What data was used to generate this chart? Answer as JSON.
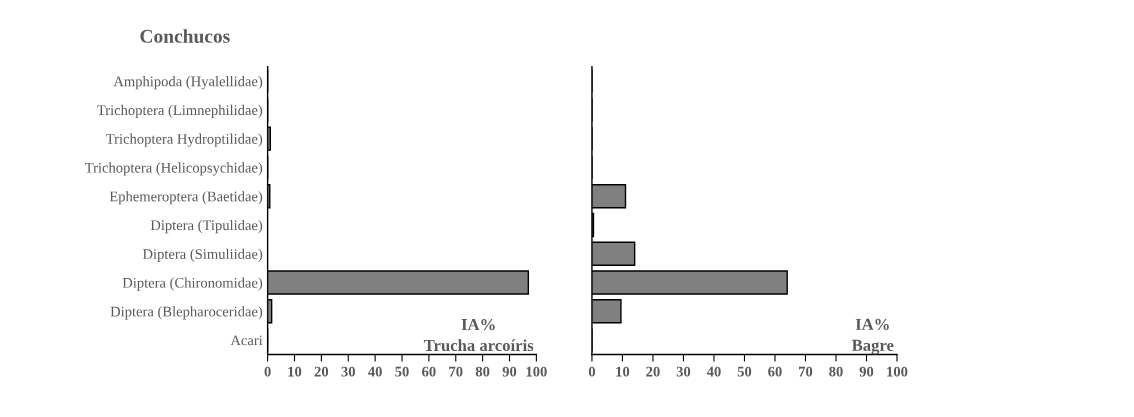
{
  "chart_data": [
    {
      "type": "bar",
      "orientation": "horizontal",
      "title": "Conchucos",
      "categories": [
        "Amphipoda (Hyalellidae)",
        "Trichoptera (Limnephilidae)",
        "Trichoptera Hydroptilidae)",
        "Trichoptera (Helicopsychidae)",
        "Ephemeroptera (Baetidae)",
        "Diptera (Tipulidae)",
        "Diptera (Simuliidae)",
        "Diptera (Chironomidae)",
        "Diptera (Blepharoceridae)",
        "Acari"
      ],
      "values": [
        0,
        0,
        1,
        0,
        0.8,
        null,
        null,
        97,
        1.5,
        0
      ],
      "color": "#808080",
      "xlim": [
        0,
        100
      ],
      "xticks": [
        0,
        10,
        20,
        30,
        40,
        50,
        60,
        70,
        80,
        90,
        100
      ],
      "annotations": [
        "IA%\nTrucha arcoíris"
      ],
      "grid": false,
      "legend": false
    },
    {
      "type": "bar",
      "orientation": "horizontal",
      "categories": [
        null,
        null,
        null,
        null,
        null,
        null,
        null,
        null,
        null,
        null
      ],
      "values": [
        0,
        0,
        0,
        0,
        11,
        0.5,
        14,
        64,
        9.5,
        0
      ],
      "color": "#808080",
      "xlim": [
        0,
        100
      ],
      "xticks": [
        0,
        10,
        20,
        30,
        40,
        50,
        60,
        70,
        80,
        90,
        100
      ],
      "annotations": [
        "IA%\nBagre"
      ],
      "grid": false,
      "legend": false
    }
  ]
}
